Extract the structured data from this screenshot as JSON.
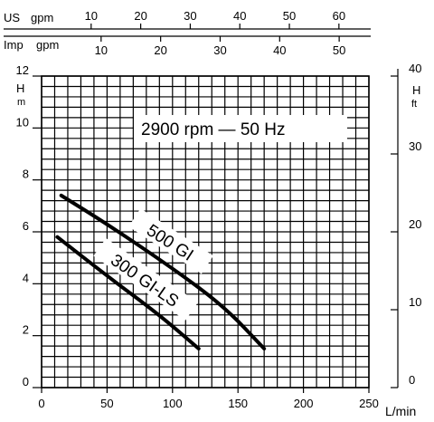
{
  "chart_data": {
    "type": "line",
    "speed_label": "2900 rpm — 50 Hz",
    "x_axis": {
      "unit": "L/min",
      "range": [
        0,
        250
      ],
      "ticks": [
        0,
        50,
        100,
        150,
        200,
        250
      ]
    },
    "y_axis_left": {
      "unit_top": "H",
      "unit_bottom": "m",
      "range": [
        0,
        12
      ],
      "ticks": [
        0,
        2,
        4,
        6,
        8,
        10,
        12
      ]
    },
    "y_axis_right": {
      "unit_top": "H",
      "unit_bottom": "ft",
      "range": [
        0,
        40
      ],
      "ticks": [
        0,
        10,
        20,
        30,
        40
      ]
    },
    "top_axis_us": {
      "unit_a": "US",
      "unit_b": "gpm",
      "ticks": [
        10,
        20,
        30,
        40,
        50,
        60
      ]
    },
    "top_axis_imp": {
      "unit_a": "Imp",
      "unit_b": "gpm",
      "ticks": [
        10,
        20,
        30,
        40,
        50
      ]
    },
    "grid": true,
    "series": [
      {
        "name": "500 GI",
        "x": [
          15,
          50,
          100,
          140,
          170
        ],
        "y": [
          7.4,
          6.3,
          4.6,
          3.1,
          1.5
        ]
      },
      {
        "name": "300 GI-LS",
        "x": [
          12,
          50,
          90,
          120
        ],
        "y": [
          5.8,
          4.3,
          2.8,
          1.5
        ]
      }
    ]
  }
}
